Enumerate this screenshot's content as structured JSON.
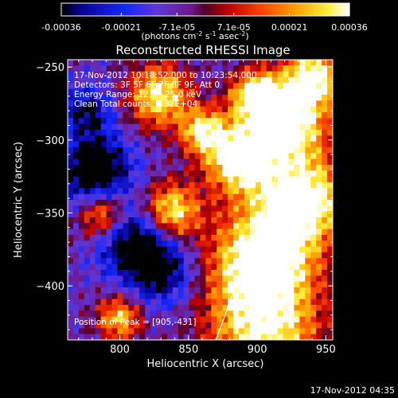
{
  "chart_data": {
    "type": "heatmap",
    "title": "Reconstructed RHESSI Image",
    "xlabel": "Heliocentric X (arcsec)",
    "ylabel": "Heliocentric Y (arcsec)",
    "xlim": [
      762,
      955
    ],
    "ylim": [
      -437,
      -245
    ],
    "x_ticks": [
      800,
      850,
      900,
      950
    ],
    "y_ticks": [
      -250,
      -300,
      -350,
      -400
    ],
    "colorbar": {
      "ticks": [
        "-0.00036",
        "-0.00021",
        "-7.1e-05",
        "7.1e-05",
        "0.00021",
        "0.00036"
      ],
      "tick_values": [
        -0.00036,
        -0.00021,
        -7.1e-05,
        7.1e-05,
        0.00021,
        0.00036
      ],
      "range": [
        -0.00036,
        0.00036
      ],
      "unit_parts": [
        "(photons cm",
        "-2",
        " s",
        "-1",
        " asec",
        "-2",
        ")"
      ],
      "colormap": "rainbow-to-hot"
    },
    "annotations": [
      "17-Nov-2012 10:18:52.000 to 10:23:54.000",
      "Detectors: 3F 5F 6F 7F 8F 9F, Att 0",
      "Energy Range: 12.0 - 25.0 keV",
      "Clean     Total counts: 1.32E+04"
    ],
    "peak_label": "Position of Peak = [905,-431]",
    "limb_line": [
      [
        870,
        -437
      ],
      [
        945,
        -245
      ]
    ]
  },
  "footer": {
    "timestamp": "17-Nov-2012 04:35"
  }
}
